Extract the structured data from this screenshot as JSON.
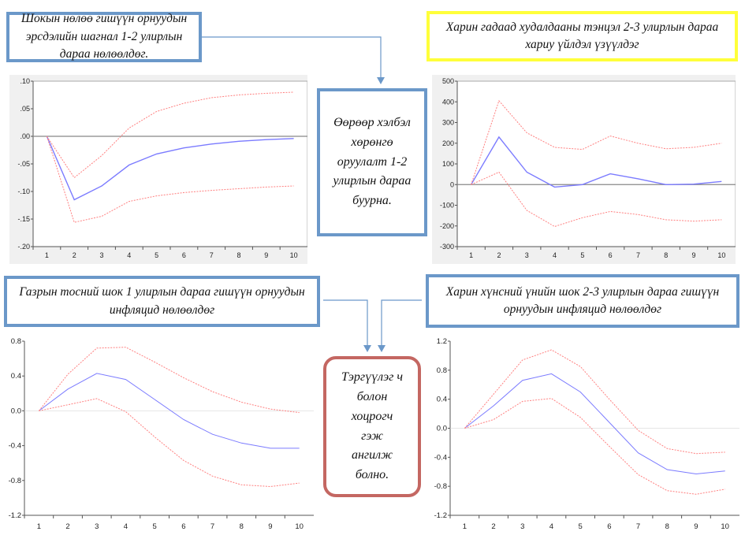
{
  "boxes": {
    "top_left": "Шокын нөлөө гишүүн орнуудын эрсдэлийн шагнал 1-2 улирлын дараа нөлөөлдөг.",
    "top_right": "Харин гадаад худалдааны тэнцэл 2-3 улирлын дараа хариу үйлдэл үзүүлдэг",
    "middle": "Өөрөөр хэлбэл хөрөнгө оруулалт 1-2 улирлын дараа буурна.",
    "bottom_left": "Газрын тосний шок 1 улирлын дараа гишүүн орнуудын инфляцид нөлөөлдөг",
    "bottom_right": "Харин хүнсний үнийн шок 2-3 улирлын дараа гишүүн орнуудын инфляцид нөлөөлдөг",
    "bottom_middle": "Тэргүүлэг ч болон хоцрогч гэж ангилж болно."
  },
  "colors": {
    "response": "#7b7bff",
    "band": "#ff8080",
    "box_blue": "#6b98c9",
    "box_yellow": "#ffff3a",
    "box_red": "#c46762"
  },
  "chart_data": [
    {
      "type": "line",
      "x": [
        1,
        2,
        3,
        4,
        5,
        6,
        7,
        8,
        9,
        10
      ],
      "ylim": [
        -0.2,
        0.1
      ],
      "yticks": [
        ".10",
        ".05",
        ".00",
        "-.05",
        "-.10",
        "-.15",
        "-.20"
      ],
      "ytick_values": [
        0.1,
        0.05,
        0,
        -0.05,
        -0.1,
        -0.15,
        -0.2
      ],
      "series": [
        {
          "name": "response",
          "values": [
            0,
            -0.115,
            -0.09,
            -0.052,
            -0.032,
            -0.021,
            -0.014,
            -0.009,
            -0.006,
            -0.004
          ]
        },
        {
          "name": "upper",
          "values": [
            0,
            -0.075,
            -0.035,
            0.015,
            0.045,
            0.06,
            0.07,
            0.075,
            0.078,
            0.08
          ]
        },
        {
          "name": "lower",
          "values": [
            0,
            -0.156,
            -0.145,
            -0.118,
            -0.108,
            -0.102,
            -0.098,
            -0.095,
            -0.092,
            -0.09
          ]
        }
      ]
    },
    {
      "type": "line",
      "x": [
        1,
        2,
        3,
        4,
        5,
        6,
        7,
        8,
        9,
        10
      ],
      "ylim": [
        -300,
        500
      ],
      "yticks": [
        "500",
        "400",
        "300",
        "200",
        "100",
        "0",
        "-100",
        "-200",
        "-300"
      ],
      "ytick_values": [
        500,
        400,
        300,
        200,
        100,
        0,
        -100,
        -200,
        -300
      ],
      "series": [
        {
          "name": "response",
          "values": [
            0,
            230,
            60,
            -12,
            0,
            52,
            28,
            0,
            2,
            15
          ]
        },
        {
          "name": "upper",
          "values": [
            0,
            405,
            250,
            180,
            170,
            235,
            200,
            173,
            180,
            200
          ]
        },
        {
          "name": "lower",
          "values": [
            0,
            60,
            -125,
            -203,
            -160,
            -130,
            -145,
            -170,
            -177,
            -170
          ]
        }
      ]
    },
    {
      "type": "line",
      "x": [
        1,
        2,
        3,
        4,
        5,
        6,
        7,
        8,
        9,
        10
      ],
      "ylim": [
        -1.2,
        0.8
      ],
      "yticks": [
        "0.8",
        "0.4",
        "0.0",
        "-0.4",
        "-0.8",
        "-1.2"
      ],
      "ytick_values": [
        0.8,
        0.4,
        0,
        -0.4,
        -0.8,
        -1.2
      ],
      "series": [
        {
          "name": "response",
          "values": [
            0,
            0.25,
            0.43,
            0.36,
            0.13,
            -0.1,
            -0.27,
            -0.37,
            -0.43,
            -0.43
          ]
        },
        {
          "name": "upper",
          "values": [
            0,
            0.42,
            0.72,
            0.73,
            0.56,
            0.38,
            0.22,
            0.1,
            0.02,
            -0.02
          ]
        },
        {
          "name": "lower",
          "values": [
            0,
            0.07,
            0.14,
            -0.01,
            -0.3,
            -0.57,
            -0.75,
            -0.85,
            -0.87,
            -0.83
          ]
        }
      ]
    },
    {
      "type": "line",
      "x": [
        1,
        2,
        3,
        4,
        5,
        6,
        7,
        8,
        9,
        10
      ],
      "ylim": [
        -1.2,
        1.2
      ],
      "yticks": [
        "1.2",
        "0.8",
        "0.4",
        "0.0",
        "-0.4",
        "-0.8",
        "-1.2"
      ],
      "ytick_values": [
        1.2,
        0.8,
        0.4,
        0,
        -0.4,
        -0.8,
        -1.2
      ],
      "series": [
        {
          "name": "response",
          "values": [
            0,
            0.31,
            0.66,
            0.75,
            0.5,
            0.08,
            -0.34,
            -0.57,
            -0.63,
            -0.59
          ]
        },
        {
          "name": "upper",
          "values": [
            0,
            0.47,
            0.94,
            1.08,
            0.85,
            0.4,
            -0.03,
            -0.28,
            -0.35,
            -0.33
          ]
        },
        {
          "name": "lower",
          "values": [
            0,
            0.12,
            0.37,
            0.41,
            0.15,
            -0.25,
            -0.64,
            -0.86,
            -0.91,
            -0.84
          ]
        }
      ]
    }
  ]
}
